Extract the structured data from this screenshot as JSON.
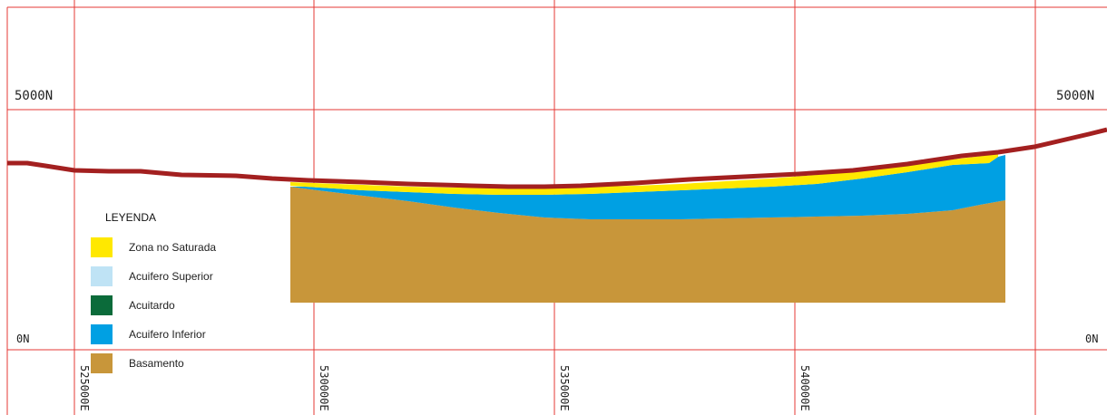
{
  "grid": {
    "north_labels": {
      "top": "5000N",
      "bottom": "0N"
    },
    "east_labels": [
      "525000E",
      "530000E",
      "535000E",
      "540000E"
    ]
  },
  "legend": {
    "title": "LEYENDA",
    "items": [
      {
        "label": "Zona no Saturada",
        "color": "#ffe800"
      },
      {
        "label": "Acuifero Superior",
        "color": "#bfe3f5"
      },
      {
        "label": "Acuitardo",
        "color": "#0b6b3a"
      },
      {
        "label": "Acuifero Inferior",
        "color": "#00a0e3"
      },
      {
        "label": "Basamento",
        "color": "#c8963a"
      }
    ]
  },
  "colors": {
    "grid_line": "#e53935",
    "surface": "#a32020",
    "vadose": "#ffe800",
    "lower_aquifer": "#00a0e3",
    "basement": "#c8963a"
  }
}
